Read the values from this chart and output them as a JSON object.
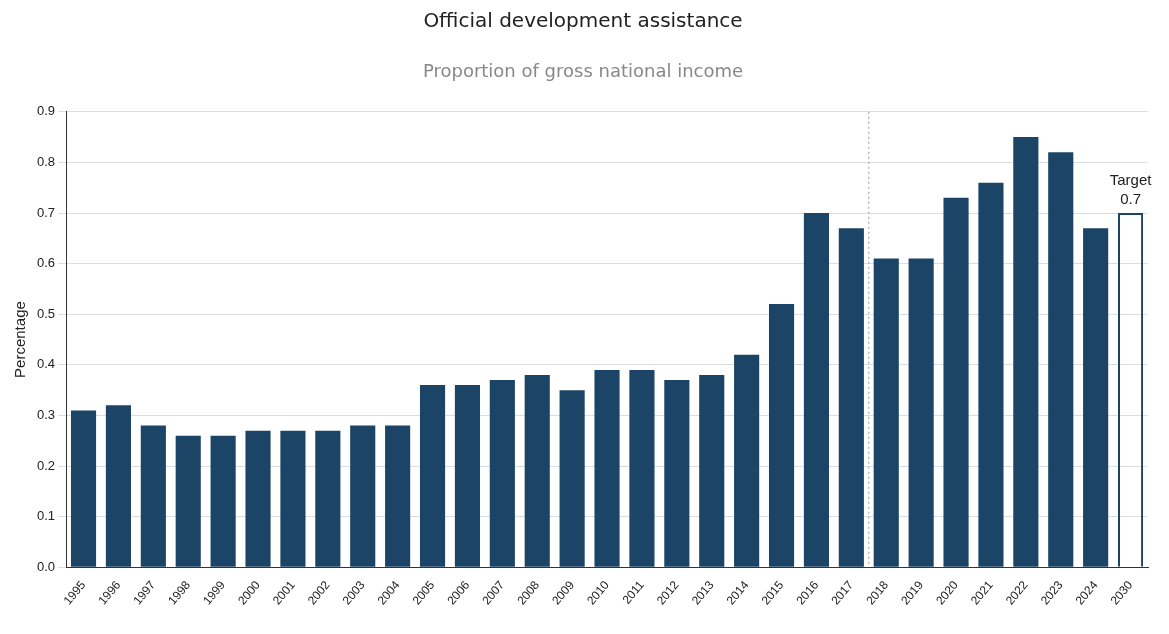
{
  "chart_data": {
    "type": "bar",
    "title": "Official development assistance",
    "subtitle": "Proportion of gross national income",
    "ylabel": "Percentage",
    "categories": [
      "1995",
      "1996",
      "1997",
      "1998",
      "1999",
      "2000",
      "2001",
      "2002",
      "2003",
      "2004",
      "2005",
      "2006",
      "2007",
      "2008",
      "2009",
      "2010",
      "2011",
      "2012",
      "2013",
      "2014",
      "2015",
      "2016",
      "2017",
      "2018",
      "2019",
      "2020",
      "2021",
      "2022",
      "2023",
      "2024",
      "2030"
    ],
    "values": [
      0.31,
      0.32,
      0.28,
      0.26,
      0.26,
      0.27,
      0.27,
      0.27,
      0.28,
      0.28,
      0.36,
      0.36,
      0.37,
      0.38,
      0.35,
      0.39,
      0.39,
      0.37,
      0.38,
      0.42,
      0.52,
      0.7,
      0.67,
      0.61,
      0.61,
      0.73,
      0.76,
      0.85,
      0.82,
      0.67,
      0.7
    ],
    "ref_lines": [
      {
        "axis": "x",
        "value": "2018",
        "color": "#999999",
        "line_style": "dotted"
      }
    ],
    "colors": [
      "#1b4466",
      "#1b4466",
      "#1b4466",
      "#1b4466",
      "#1b4466",
      "#1b4466",
      "#1b4466",
      "#1b4466",
      "#1b4466",
      "#1b4466",
      "#1b4466",
      "#1b4466",
      "#1b4466",
      "#1b4466",
      "#1b4466",
      "#1b4466",
      "#1b4466",
      "#1b4466",
      "#1b4466",
      "#1b4466",
      "#1b4466",
      "#1b4466",
      "#1b4466",
      "#1b4466",
      "#1b4466",
      "#1b4466",
      "#1b4466",
      "#1b4466",
      "#1b4466",
      "#1b4466",
      "#1b4466"
    ],
    "value_labels": [
      null,
      null,
      null,
      null,
      null,
      null,
      null,
      null,
      null,
      null,
      null,
      null,
      null,
      null,
      null,
      null,
      null,
      null,
      null,
      null,
      null,
      null,
      null,
      null,
      null,
      null,
      null,
      null,
      null,
      null,
      "0.7"
    ],
    "annotations": [
      {
        "text": "Target",
        "x": "2030",
        "y": 0.7
      }
    ],
    "ylim": [
      0,
      0.9
    ],
    "yticks": [
      {
        "value": 0,
        "label": "0.0"
      },
      0.1,
      0.2,
      0.3,
      0.4,
      0.5,
      0.6,
      0.7,
      0.8,
      0.9
    ],
    "grid": "y",
    "legend": false
  }
}
